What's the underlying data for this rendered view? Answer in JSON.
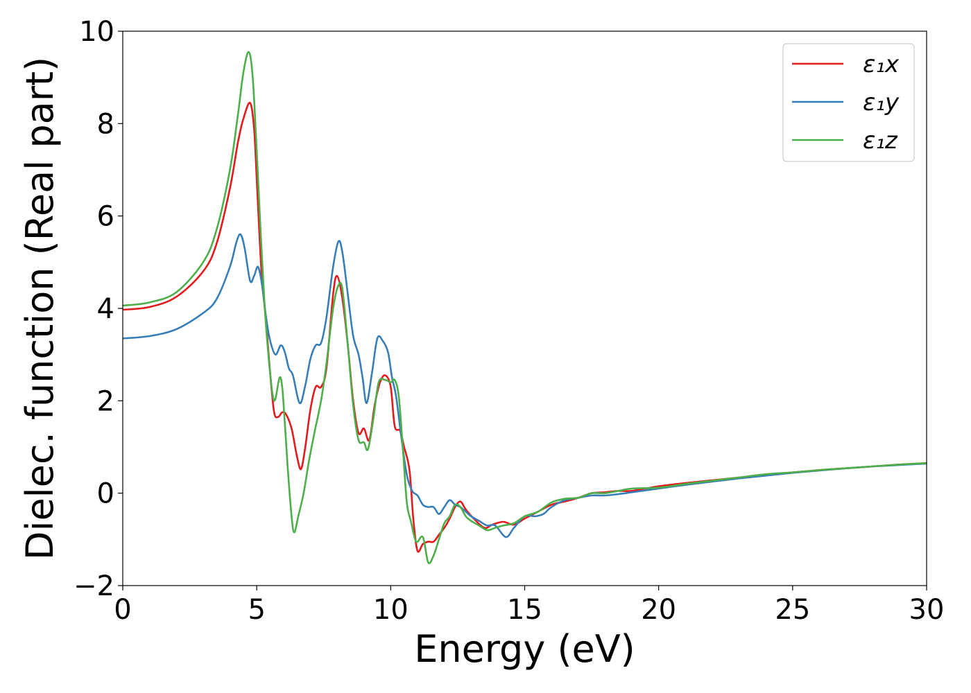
{
  "chart_data": {
    "type": "line",
    "title": "",
    "xlabel": "Energy (eV)",
    "ylabel": "Dielec. function (Real part)",
    "xlim": [
      0,
      30
    ],
    "ylim": [
      -2,
      10
    ],
    "xticks": [
      0,
      5,
      10,
      15,
      20,
      25,
      30
    ],
    "yticks": [
      -2,
      0,
      2,
      4,
      6,
      8,
      10
    ],
    "xtick_labels": [
      "0",
      "5",
      "10",
      "15",
      "20",
      "25",
      "30"
    ],
    "ytick_labels": [
      "−2",
      "0",
      "2",
      "4",
      "6",
      "8",
      "10"
    ],
    "grid": false,
    "legend_position": "top-right",
    "series": [
      {
        "name": "ε₁x",
        "color": "#e41a1c",
        "points": [
          [
            0,
            3.97
          ],
          [
            1.0,
            4.03
          ],
          [
            2.0,
            4.25
          ],
          [
            3.0,
            4.8
          ],
          [
            3.5,
            5.4
          ],
          [
            4.0,
            6.6
          ],
          [
            4.3,
            7.6
          ],
          [
            4.5,
            8.1
          ],
          [
            4.75,
            8.45
          ],
          [
            4.9,
            7.9
          ],
          [
            5.0,
            6.8
          ],
          [
            5.1,
            5.6
          ],
          [
            5.2,
            4.6
          ],
          [
            5.35,
            3.7
          ],
          [
            5.5,
            2.6
          ],
          [
            5.65,
            1.75
          ],
          [
            5.8,
            1.65
          ],
          [
            5.95,
            1.75
          ],
          [
            6.1,
            1.7
          ],
          [
            6.3,
            1.4
          ],
          [
            6.5,
            0.8
          ],
          [
            6.65,
            0.52
          ],
          [
            6.8,
            0.95
          ],
          [
            7.0,
            1.8
          ],
          [
            7.2,
            2.3
          ],
          [
            7.4,
            2.3
          ],
          [
            7.6,
            2.7
          ],
          [
            7.85,
            4.3
          ],
          [
            8.0,
            4.7
          ],
          [
            8.2,
            4.2
          ],
          [
            8.4,
            3.2
          ],
          [
            8.6,
            2.0
          ],
          [
            8.8,
            1.3
          ],
          [
            9.0,
            1.4
          ],
          [
            9.2,
            1.15
          ],
          [
            9.4,
            1.9
          ],
          [
            9.6,
            2.4
          ],
          [
            9.8,
            2.55
          ],
          [
            10.0,
            2.3
          ],
          [
            10.15,
            1.45
          ],
          [
            10.35,
            1.35
          ],
          [
            10.5,
            1.0
          ],
          [
            10.7,
            0.5
          ],
          [
            10.85,
            -0.6
          ],
          [
            11.0,
            -1.25
          ],
          [
            11.2,
            -1.1
          ],
          [
            11.4,
            -1.05
          ],
          [
            11.6,
            -1.05
          ],
          [
            11.8,
            -0.9
          ],
          [
            12.0,
            -0.75
          ],
          [
            12.2,
            -0.55
          ],
          [
            12.4,
            -0.3
          ],
          [
            12.6,
            -0.18
          ],
          [
            12.8,
            -0.35
          ],
          [
            13.1,
            -0.55
          ],
          [
            13.5,
            -0.75
          ],
          [
            13.8,
            -0.68
          ],
          [
            14.2,
            -0.62
          ],
          [
            14.6,
            -0.68
          ],
          [
            15.0,
            -0.55
          ],
          [
            15.5,
            -0.4
          ],
          [
            16.0,
            -0.25
          ],
          [
            16.5,
            -0.18
          ],
          [
            17.0,
            -0.1
          ],
          [
            17.5,
            0.0
          ],
          [
            18.0,
            0.02
          ],
          [
            18.5,
            0.05
          ],
          [
            19.0,
            0.05
          ],
          [
            20.0,
            0.15
          ],
          [
            21.0,
            0.22
          ],
          [
            22.0,
            0.28
          ],
          [
            23.0,
            0.34
          ],
          [
            24.0,
            0.4
          ],
          [
            25.0,
            0.45
          ],
          [
            26.0,
            0.5
          ],
          [
            27.0,
            0.54
          ],
          [
            28.0,
            0.58
          ],
          [
            29.0,
            0.62
          ],
          [
            30.0,
            0.65
          ]
        ]
      },
      {
        "name": "ε₁y",
        "color": "#377eb8",
        "points": [
          [
            0,
            3.35
          ],
          [
            1.0,
            3.4
          ],
          [
            2.0,
            3.55
          ],
          [
            3.0,
            3.9
          ],
          [
            3.5,
            4.2
          ],
          [
            4.0,
            4.9
          ],
          [
            4.25,
            5.45
          ],
          [
            4.4,
            5.6
          ],
          [
            4.55,
            5.3
          ],
          [
            4.75,
            4.6
          ],
          [
            4.9,
            4.7
          ],
          [
            5.05,
            4.9
          ],
          [
            5.2,
            4.5
          ],
          [
            5.35,
            3.8
          ],
          [
            5.5,
            3.3
          ],
          [
            5.7,
            3.0
          ],
          [
            5.9,
            3.2
          ],
          [
            6.05,
            3.05
          ],
          [
            6.2,
            2.7
          ],
          [
            6.35,
            2.55
          ],
          [
            6.6,
            1.95
          ],
          [
            6.8,
            2.3
          ],
          [
            7.0,
            2.9
          ],
          [
            7.2,
            3.2
          ],
          [
            7.4,
            3.25
          ],
          [
            7.6,
            3.8
          ],
          [
            7.85,
            4.9
          ],
          [
            8.05,
            5.45
          ],
          [
            8.2,
            5.2
          ],
          [
            8.4,
            4.3
          ],
          [
            8.6,
            3.4
          ],
          [
            8.8,
            3.0
          ],
          [
            8.95,
            2.5
          ],
          [
            9.1,
            1.95
          ],
          [
            9.3,
            2.6
          ],
          [
            9.5,
            3.35
          ],
          [
            9.7,
            3.3
          ],
          [
            9.9,
            3.05
          ],
          [
            10.05,
            2.5
          ],
          [
            10.2,
            2.1
          ],
          [
            10.4,
            1.2
          ],
          [
            10.6,
            0.4
          ],
          [
            10.8,
            0.05
          ],
          [
            11.0,
            -0.05
          ],
          [
            11.2,
            -0.25
          ],
          [
            11.4,
            -0.3
          ],
          [
            11.6,
            -0.3
          ],
          [
            11.8,
            -0.45
          ],
          [
            12.0,
            -0.3
          ],
          [
            12.2,
            -0.15
          ],
          [
            12.4,
            -0.25
          ],
          [
            12.6,
            -0.3
          ],
          [
            12.8,
            -0.4
          ],
          [
            13.0,
            -0.5
          ],
          [
            13.3,
            -0.6
          ],
          [
            13.6,
            -0.7
          ],
          [
            13.9,
            -0.7
          ],
          [
            14.3,
            -0.95
          ],
          [
            14.6,
            -0.75
          ],
          [
            15.0,
            -0.5
          ],
          [
            15.4,
            -0.5
          ],
          [
            15.7,
            -0.45
          ],
          [
            16.0,
            -0.3
          ],
          [
            16.5,
            -0.15
          ],
          [
            17.0,
            -0.1
          ],
          [
            17.5,
            -0.05
          ],
          [
            18.0,
            -0.05
          ],
          [
            18.5,
            -0.02
          ],
          [
            19.0,
            0.02
          ],
          [
            20.0,
            0.1
          ],
          [
            21.0,
            0.18
          ],
          [
            22.0,
            0.25
          ],
          [
            23.0,
            0.32
          ],
          [
            24.0,
            0.38
          ],
          [
            25.0,
            0.44
          ],
          [
            26.0,
            0.49
          ],
          [
            27.0,
            0.54
          ],
          [
            28.0,
            0.58
          ],
          [
            29.0,
            0.61
          ],
          [
            30.0,
            0.64
          ]
        ]
      },
      {
        "name": "ε₁z",
        "color": "#4daf4a",
        "points": [
          [
            0,
            4.06
          ],
          [
            1.0,
            4.13
          ],
          [
            2.0,
            4.35
          ],
          [
            3.0,
            5.0
          ],
          [
            3.5,
            5.7
          ],
          [
            4.0,
            7.0
          ],
          [
            4.3,
            8.2
          ],
          [
            4.5,
            9.1
          ],
          [
            4.7,
            9.55
          ],
          [
            4.85,
            9.0
          ],
          [
            5.0,
            7.4
          ],
          [
            5.15,
            5.6
          ],
          [
            5.3,
            4.0
          ],
          [
            5.45,
            2.9
          ],
          [
            5.6,
            2.1
          ],
          [
            5.7,
            2.05
          ],
          [
            5.85,
            2.5
          ],
          [
            5.95,
            2.3
          ],
          [
            6.05,
            1.5
          ],
          [
            6.15,
            0.6
          ],
          [
            6.3,
            -0.5
          ],
          [
            6.4,
            -0.85
          ],
          [
            6.55,
            -0.5
          ],
          [
            6.75,
            0.0
          ],
          [
            6.95,
            0.7
          ],
          [
            7.15,
            1.3
          ],
          [
            7.4,
            2.0
          ],
          [
            7.6,
            2.8
          ],
          [
            7.85,
            4.0
          ],
          [
            8.05,
            4.5
          ],
          [
            8.2,
            4.4
          ],
          [
            8.4,
            3.2
          ],
          [
            8.6,
            1.9
          ],
          [
            8.8,
            1.15
          ],
          [
            9.0,
            1.1
          ],
          [
            9.15,
            0.95
          ],
          [
            9.35,
            1.6
          ],
          [
            9.55,
            2.4
          ],
          [
            9.8,
            2.45
          ],
          [
            10.0,
            2.4
          ],
          [
            10.15,
            2.45
          ],
          [
            10.3,
            2.1
          ],
          [
            10.45,
            1.0
          ],
          [
            10.6,
            -0.2
          ],
          [
            10.75,
            -0.6
          ],
          [
            10.95,
            -1.05
          ],
          [
            11.2,
            -0.95
          ],
          [
            11.4,
            -1.5
          ],
          [
            11.6,
            -1.35
          ],
          [
            11.8,
            -1.0
          ],
          [
            12.0,
            -0.65
          ],
          [
            12.2,
            -0.5
          ],
          [
            12.4,
            -0.25
          ],
          [
            12.6,
            -0.3
          ],
          [
            12.8,
            -0.5
          ],
          [
            13.0,
            -0.6
          ],
          [
            13.3,
            -0.7
          ],
          [
            13.6,
            -0.8
          ],
          [
            13.9,
            -0.75
          ],
          [
            14.2,
            -0.7
          ],
          [
            14.6,
            -0.65
          ],
          [
            15.0,
            -0.5
          ],
          [
            15.5,
            -0.4
          ],
          [
            16.0,
            -0.2
          ],
          [
            16.5,
            -0.12
          ],
          [
            17.0,
            -0.1
          ],
          [
            17.5,
            0.0
          ],
          [
            18.0,
            0.0
          ],
          [
            18.5,
            0.05
          ],
          [
            19.0,
            0.1
          ],
          [
            20.0,
            0.12
          ],
          [
            21.0,
            0.2
          ],
          [
            22.0,
            0.27
          ],
          [
            23.0,
            0.34
          ],
          [
            24.0,
            0.41
          ],
          [
            25.0,
            0.45
          ],
          [
            26.0,
            0.5
          ],
          [
            27.0,
            0.54
          ],
          [
            28.0,
            0.58
          ],
          [
            29.0,
            0.62
          ],
          [
            30.0,
            0.65
          ]
        ]
      }
    ]
  }
}
